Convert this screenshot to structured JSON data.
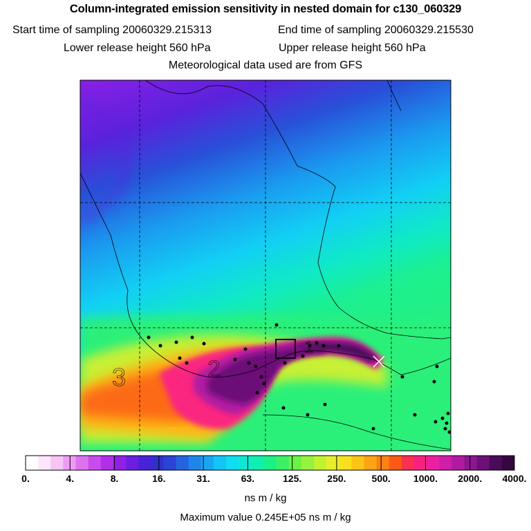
{
  "header": {
    "title": "Column-integrated emission sensitivity in nested domain for c130_060329",
    "start_sampling": "Start time of sampling 20060329.215313",
    "end_sampling": "End time of sampling 20060329.215530",
    "lower_release": "Lower release height  560 hPa",
    "upper_release": "Upper release height  560 hPa",
    "meteo": "Meteorological data used are from GFS"
  },
  "map": {
    "plume_labels": [
      "3",
      "2",
      "1"
    ]
  },
  "colorbar": {
    "tick_labels": [
      "0.",
      "4.",
      "8.",
      "16.",
      "31.",
      "63.",
      "125.",
      "250.",
      "500.",
      "1000.",
      "2000.",
      "4000."
    ],
    "units": "ns m / kg",
    "colors": [
      "#ffffff",
      "#fde6fb",
      "#f7c4f6",
      "#ee9cf3",
      "#de73ef",
      "#c84ced",
      "#b22ee9",
      "#9020e6",
      "#6d1fe0",
      "#4a22d8",
      "#3030d0",
      "#2a44d6",
      "#2464e0",
      "#1e86ea",
      "#18a6f2",
      "#14c4f6",
      "#10dcf2",
      "#0ee8d2",
      "#10eeb0",
      "#1cf088",
      "#3cf066",
      "#68f246",
      "#96f23c",
      "#c2f232",
      "#e8ee2a",
      "#fae020",
      "#fcc418",
      "#fca414",
      "#fc8212",
      "#fc5a14",
      "#fc3050",
      "#fa2080",
      "#ea20a0",
      "#d01ea8",
      "#b01aa0",
      "#8e1690",
      "#6c1078",
      "#4c0a5c",
      "#360640"
    ]
  },
  "max_value": "Maximum value  0.245E+05 ns m / kg"
}
